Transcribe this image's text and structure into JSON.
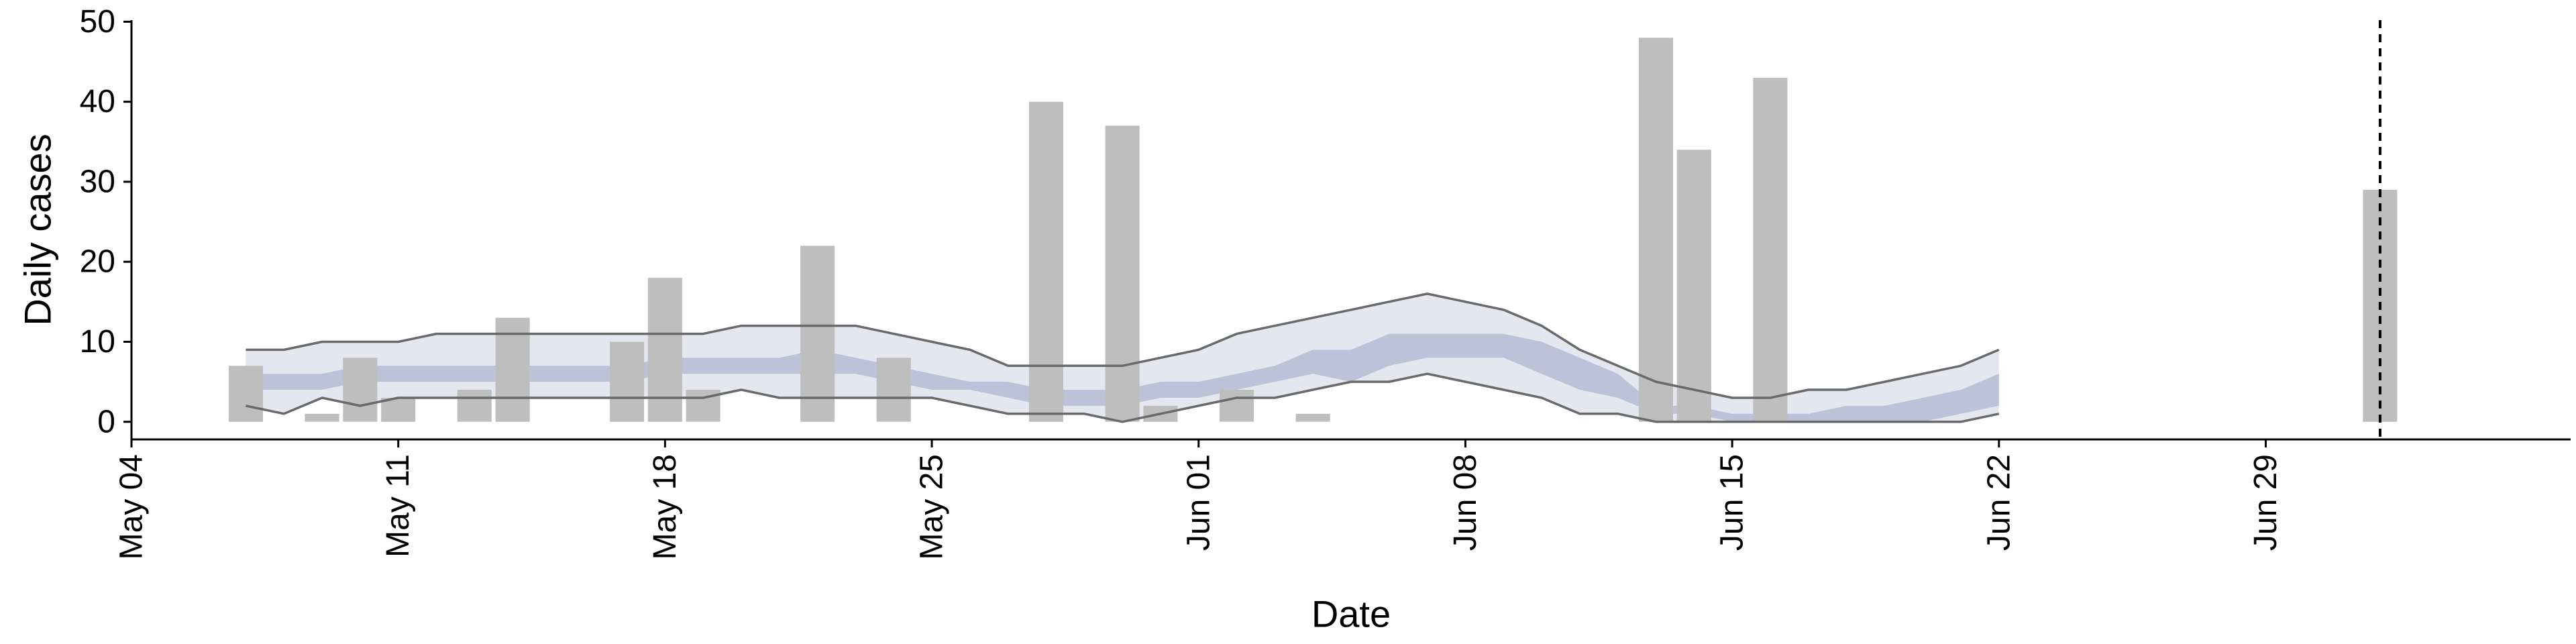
{
  "chart_data": {
    "type": "bar",
    "title": "",
    "xlabel": "Date",
    "ylabel": "Daily cases",
    "ylim": [
      -2.2,
      50.2
    ],
    "xlim": [
      "2020-05-04",
      "2020-07-07"
    ],
    "grid": false,
    "legend": "none",
    "y_ticks": [
      0,
      10,
      20,
      30,
      40,
      50
    ],
    "x_ticks": [
      {
        "date": "2020-05-04",
        "label": "May 04"
      },
      {
        "date": "2020-05-11",
        "label": "May 11"
      },
      {
        "date": "2020-05-18",
        "label": "May 18"
      },
      {
        "date": "2020-05-25",
        "label": "May 25"
      },
      {
        "date": "2020-06-01",
        "label": "Jun 01"
      },
      {
        "date": "2020-06-08",
        "label": "Jun 08"
      },
      {
        "date": "2020-06-15",
        "label": "Jun 15"
      },
      {
        "date": "2020-06-22",
        "label": "Jun 22"
      },
      {
        "date": "2020-06-29",
        "label": "Jun 29"
      }
    ],
    "bars": [
      {
        "date": "2020-05-07",
        "value": 7
      },
      {
        "date": "2020-05-09",
        "value": 1
      },
      {
        "date": "2020-05-10",
        "value": 8
      },
      {
        "date": "2020-05-11",
        "value": 3
      },
      {
        "date": "2020-05-13",
        "value": 4
      },
      {
        "date": "2020-05-14",
        "value": 13
      },
      {
        "date": "2020-05-17",
        "value": 10
      },
      {
        "date": "2020-05-18",
        "value": 18
      },
      {
        "date": "2020-05-19",
        "value": 4
      },
      {
        "date": "2020-05-22",
        "value": 22
      },
      {
        "date": "2020-05-24",
        "value": 8
      },
      {
        "date": "2020-05-28",
        "value": 40
      },
      {
        "date": "2020-05-30",
        "value": 37
      },
      {
        "date": "2020-05-31",
        "value": 2
      },
      {
        "date": "2020-06-01",
        "value": 0
      },
      {
        "date": "2020-06-02",
        "value": 4
      },
      {
        "date": "2020-06-04",
        "value": 1
      },
      {
        "date": "2020-06-13",
        "value": 48
      },
      {
        "date": "2020-06-14",
        "value": 34
      },
      {
        "date": "2020-06-16",
        "value": 43
      },
      {
        "date": "2020-07-02",
        "value": 29
      }
    ],
    "band_dates": [
      "2020-05-07",
      "2020-05-08",
      "2020-05-09",
      "2020-05-10",
      "2020-05-11",
      "2020-05-12",
      "2020-05-13",
      "2020-05-14",
      "2020-05-15",
      "2020-05-16",
      "2020-05-17",
      "2020-05-18",
      "2020-05-19",
      "2020-05-20",
      "2020-05-21",
      "2020-05-22",
      "2020-05-23",
      "2020-05-24",
      "2020-05-25",
      "2020-05-26",
      "2020-05-27",
      "2020-05-28",
      "2020-05-29",
      "2020-05-30",
      "2020-05-31",
      "2020-06-01",
      "2020-06-02",
      "2020-06-03",
      "2020-06-04",
      "2020-06-05",
      "2020-06-06",
      "2020-06-07",
      "2020-06-08",
      "2020-06-09",
      "2020-06-10",
      "2020-06-11",
      "2020-06-12",
      "2020-06-13",
      "2020-06-14",
      "2020-06-15",
      "2020-06-16",
      "2020-06-17",
      "2020-06-18",
      "2020-06-19",
      "2020-06-20",
      "2020-06-21",
      "2020-06-22"
    ],
    "estimate_type_changes": {
      "estimate": "2020-06-17",
      "forecast": "2020-06-22"
    },
    "ci90_upper": [
      9,
      9,
      10,
      10,
      10,
      11,
      11,
      11,
      11,
      11,
      11,
      11,
      11,
      12,
      12,
      12,
      12,
      11,
      10,
      9,
      7,
      7,
      7,
      7,
      8,
      9,
      11,
      12,
      13,
      14,
      15,
      16,
      15,
      14,
      12,
      9,
      7,
      5,
      4,
      3,
      3,
      4,
      4,
      5,
      6,
      7,
      9
    ],
    "ci90_lower": [
      2,
      1,
      3,
      2,
      3,
      3,
      3,
      3,
      3,
      3,
      3,
      3,
      3,
      4,
      3,
      3,
      3,
      3,
      3,
      2,
      1,
      1,
      1,
      0,
      1,
      2,
      3,
      3,
      4,
      5,
      5,
      6,
      5,
      4,
      3,
      1,
      1,
      0,
      0,
      0,
      0,
      0,
      0,
      0,
      0,
      0,
      1
    ],
    "ci50_upper": [
      6,
      6,
      6,
      7,
      7,
      7,
      7,
      7,
      7,
      7,
      7,
      8,
      8,
      8,
      8,
      9,
      8,
      7,
      6,
      5,
      5,
      4,
      4,
      4,
      5,
      5,
      6,
      7,
      9,
      9,
      11,
      11,
      11,
      11,
      10,
      8,
      6,
      2,
      2,
      1,
      1,
      1,
      2,
      2,
      3,
      4,
      6
    ],
    "ci50_lower": [
      4,
      4,
      4,
      5,
      5,
      5,
      5,
      5,
      5,
      5,
      5,
      6,
      6,
      6,
      6,
      6,
      6,
      5,
      4,
      4,
      3,
      2,
      2,
      2,
      3,
      3,
      4,
      5,
      6,
      5,
      7,
      8,
      8,
      8,
      6,
      4,
      3,
      1,
      1,
      0,
      0,
      0,
      0,
      0,
      0,
      1,
      2
    ],
    "reporting_date": "2020-07-02",
    "colors": {
      "bars": "#bebebe",
      "band_outer": "#e4e6f0",
      "band_inner": "#bcc2d8",
      "bounds": "#6a6a6a",
      "axis": "#000000"
    }
  }
}
